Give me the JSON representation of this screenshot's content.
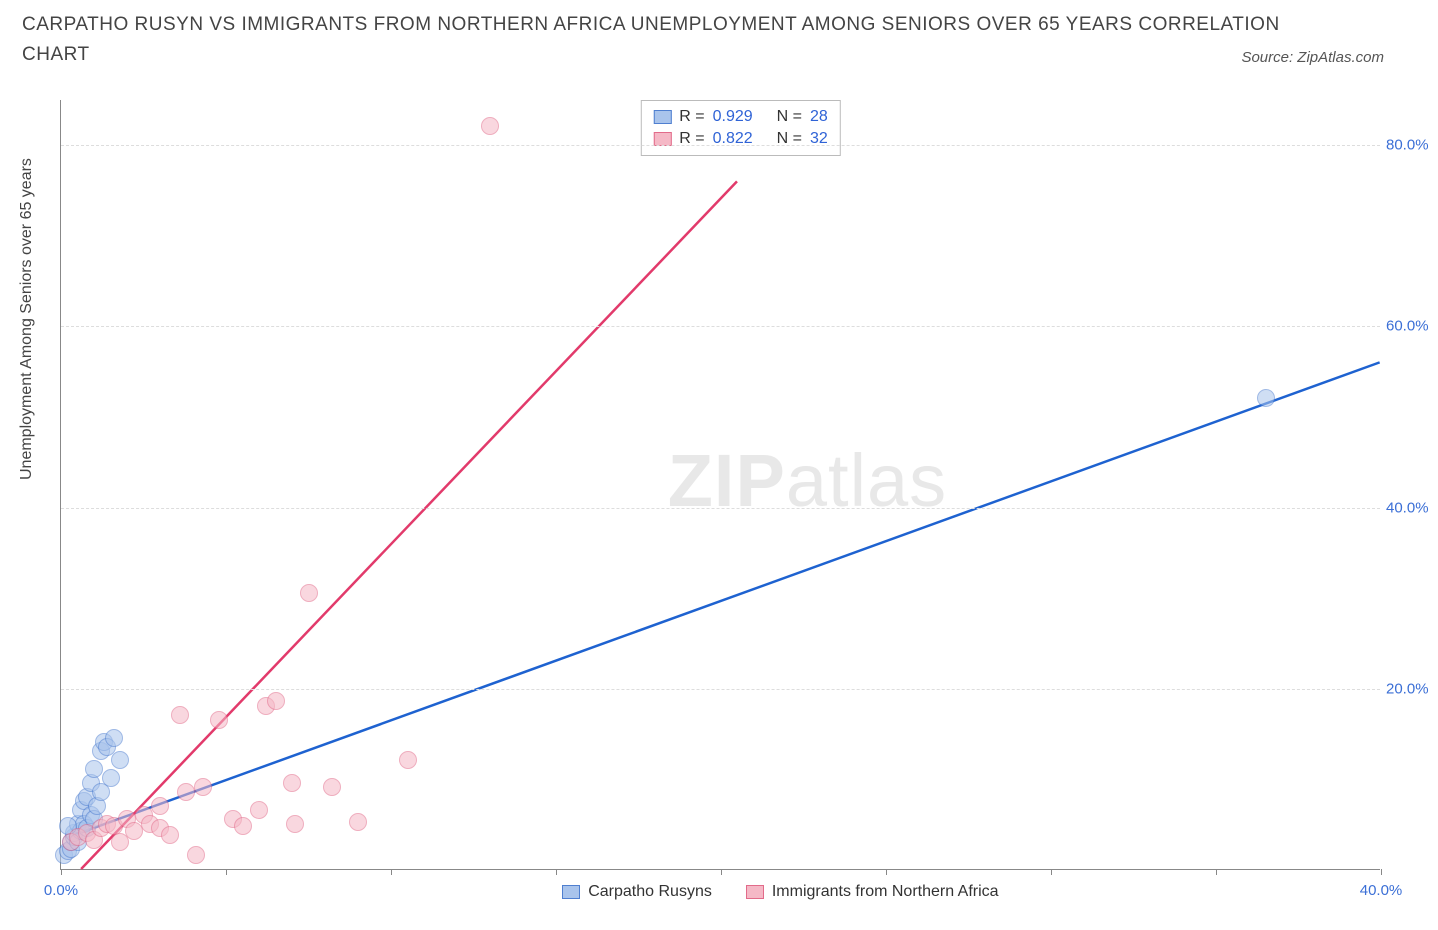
{
  "title_line1": "CARPATHO RUSYN VS IMMIGRANTS FROM NORTHERN AFRICA UNEMPLOYMENT AMONG SENIORS OVER 65 YEARS CORRELATION",
  "title_line2": "CHART",
  "source_label": "Source: ZipAtlas.com",
  "y_axis_label": "Unemployment Among Seniors over 65 years",
  "watermark_bold": "ZIP",
  "watermark_rest": "atlas",
  "chart": {
    "type": "scatter-with-regression",
    "background_color": "#ffffff",
    "grid_color": "#dddddd",
    "axis_color": "#888888",
    "tick_label_color": "#3b6fd6",
    "x_axis": {
      "min": 0,
      "max": 40,
      "ticks": [
        0,
        5,
        10,
        15,
        20,
        25,
        30,
        35,
        40
      ],
      "tick_labels": [
        "0.0%",
        "",
        "",
        "",
        "",
        "",
        "",
        "",
        "40.0%"
      ]
    },
    "y_axis": {
      "min": 0,
      "max": 85,
      "ticks": [
        20,
        40,
        60,
        80
      ],
      "tick_labels": [
        "20.0%",
        "40.0%",
        "60.0%",
        "80.0%"
      ]
    },
    "series": [
      {
        "name": "Carpatho Rusyns",
        "fill_color": "#a9c4ec",
        "stroke_color": "#4f7fd0",
        "line_color": "#1e62d0",
        "marker_radius": 9,
        "fill_opacity": 0.55,
        "R": "0.929",
        "N": "28",
        "trend": {
          "x1": 0.2,
          "y1": 3.5,
          "x2": 40,
          "y2": 56
        },
        "points": [
          [
            0.1,
            1.5
          ],
          [
            0.2,
            2.0
          ],
          [
            0.3,
            2.2
          ],
          [
            0.3,
            3.0
          ],
          [
            0.4,
            3.5
          ],
          [
            0.4,
            4.0
          ],
          [
            0.5,
            3.0
          ],
          [
            0.5,
            5.0
          ],
          [
            0.6,
            4.2
          ],
          [
            0.6,
            6.5
          ],
          [
            0.7,
            5.0
          ],
          [
            0.7,
            7.5
          ],
          [
            0.8,
            4.5
          ],
          [
            0.8,
            8.0
          ],
          [
            0.9,
            6.0
          ],
          [
            0.9,
            9.5
          ],
          [
            1.0,
            5.5
          ],
          [
            1.0,
            11.0
          ],
          [
            1.1,
            7.0
          ],
          [
            1.2,
            8.5
          ],
          [
            1.2,
            13.0
          ],
          [
            1.3,
            14.0
          ],
          [
            1.4,
            13.5
          ],
          [
            1.5,
            10.0
          ],
          [
            1.6,
            14.5
          ],
          [
            1.8,
            12.0
          ],
          [
            0.2,
            4.8
          ],
          [
            36.5,
            52.0
          ]
        ]
      },
      {
        "name": "Immigrants from Northern Africa",
        "fill_color": "#f5b8c6",
        "stroke_color": "#e26b8a",
        "line_color": "#e23a6b",
        "marker_radius": 9,
        "fill_opacity": 0.55,
        "R": "0.822",
        "N": "32",
        "trend": {
          "x1": 0.6,
          "y1": 0,
          "x2": 20.5,
          "y2": 76
        },
        "points": [
          [
            0.3,
            3.0
          ],
          [
            0.5,
            3.5
          ],
          [
            0.8,
            4.0
          ],
          [
            1.0,
            3.2
          ],
          [
            1.2,
            4.5
          ],
          [
            1.4,
            5.0
          ],
          [
            1.6,
            4.8
          ],
          [
            1.8,
            3.0
          ],
          [
            2.0,
            5.5
          ],
          [
            2.2,
            4.2
          ],
          [
            2.5,
            6.0
          ],
          [
            2.7,
            5.0
          ],
          [
            3.0,
            7.0
          ],
          [
            3.0,
            4.5
          ],
          [
            3.3,
            3.8
          ],
          [
            3.6,
            17.0
          ],
          [
            3.8,
            8.5
          ],
          [
            4.1,
            1.5
          ],
          [
            4.3,
            9.0
          ],
          [
            4.8,
            16.5
          ],
          [
            5.2,
            5.5
          ],
          [
            5.5,
            4.8
          ],
          [
            6.2,
            18.0
          ],
          [
            6.5,
            18.5
          ],
          [
            7.0,
            9.5
          ],
          [
            7.1,
            5.0
          ],
          [
            7.5,
            30.5
          ],
          [
            8.2,
            9.0
          ],
          [
            9.0,
            5.2
          ],
          [
            10.5,
            12.0
          ],
          [
            6.0,
            6.5
          ],
          [
            13.0,
            82.0
          ]
        ]
      }
    ],
    "stats_box": {
      "r_label": "R",
      "n_label": "N",
      "eq": "="
    },
    "legend_labels": [
      "Carpatho Rusyns",
      "Immigrants from Northern Africa"
    ]
  }
}
